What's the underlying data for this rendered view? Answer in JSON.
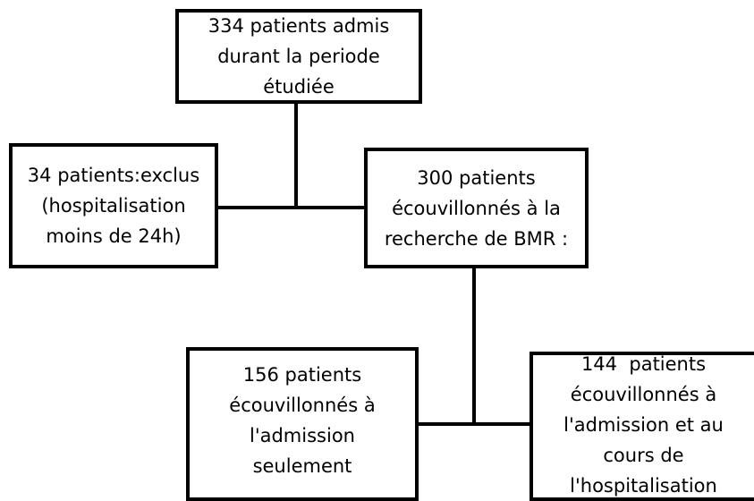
{
  "nodes": [
    {
      "lines": [
        "334 patients admis",
        "durant la periode",
        "étudiée"
      ]
    },
    {
      "lines": [
        "34 patients:exclus",
        "(hospitalisation",
        "moins de 24h)"
      ]
    },
    {
      "lines": [
        "300 patients",
        "écouvillonnés à la",
        "recherche de BMR :"
      ]
    },
    {
      "lines": [
        "156 patients",
        "écouvillonnés à",
        "l'admission",
        "seulement"
      ]
    },
    {
      "lines": [
        "144  patients",
        "écouvillonnés à",
        "l'admission et au",
        "cours de",
        "l'hospitalisation"
      ]
    }
  ]
}
